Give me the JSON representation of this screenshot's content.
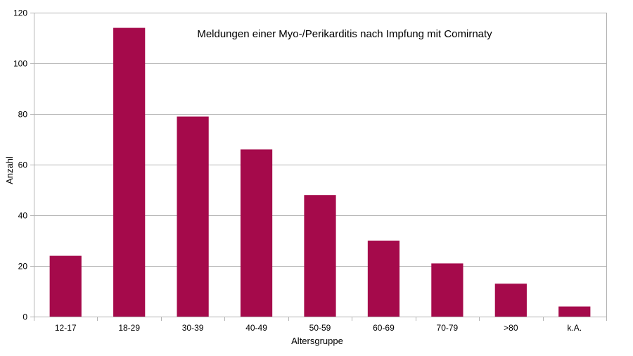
{
  "chart_data": {
    "type": "bar",
    "title": "Meldungen einer Myo-/Perikarditis nach Impfung mit Comirnaty",
    "xlabel": "Altersgruppe",
    "ylabel": "Anzahl",
    "categories": [
      "12-17",
      "18-29",
      "30-39",
      "40-49",
      "50-59",
      "60-69",
      "70-79",
      ">80",
      "k.A."
    ],
    "values": [
      24,
      114,
      79,
      66,
      48,
      30,
      21,
      13,
      4
    ],
    "ylim": [
      0,
      120
    ],
    "yticks": [
      0,
      20,
      40,
      60,
      80,
      100,
      120
    ],
    "grid": true,
    "legend": "none",
    "bar_color": "#a50a4b"
  }
}
